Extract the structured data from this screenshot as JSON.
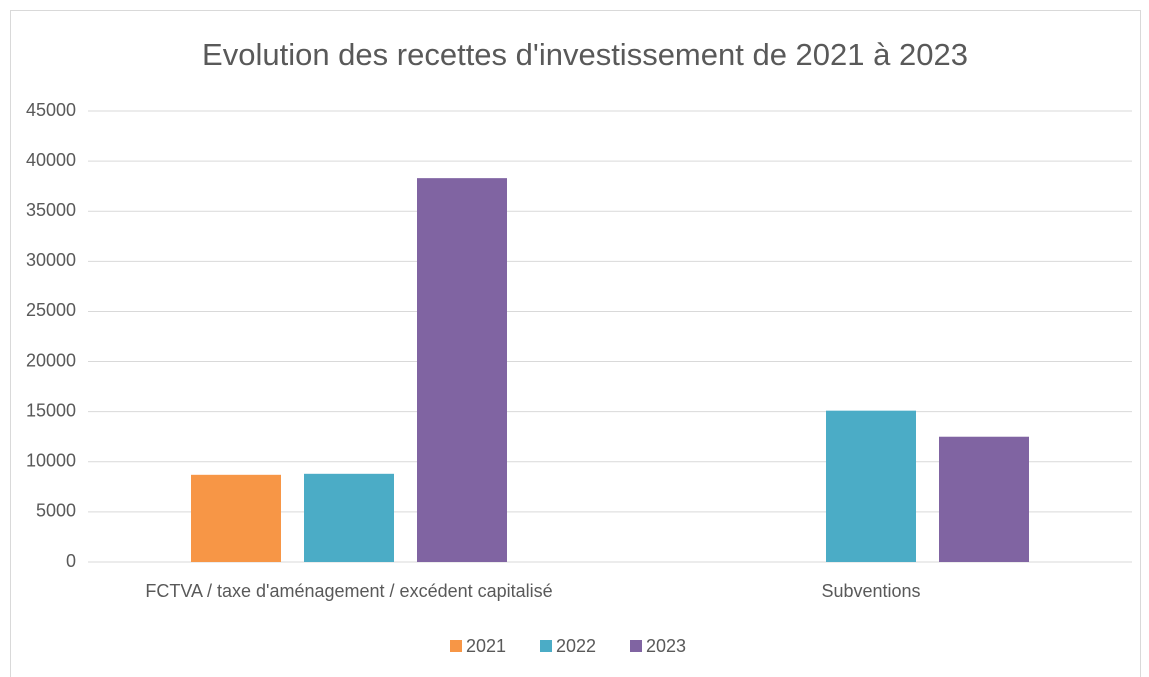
{
  "chart_data": {
    "type": "bar",
    "title": "Evolution des recettes d'investissement de 2021 à 2023",
    "categories": [
      "FCTVA / taxe d'aménagement / excédent capitalisé",
      "Subventions"
    ],
    "series": [
      {
        "name": "2021",
        "color": "#f79646",
        "values": [
          8700,
          null
        ]
      },
      {
        "name": "2022",
        "color": "#4bacc6",
        "values": [
          8800,
          15100
        ]
      },
      {
        "name": "2023",
        "color": "#8064a2",
        "values": [
          38300,
          12500
        ]
      }
    ],
    "ylim": [
      0,
      45000
    ],
    "yticks": [
      0,
      5000,
      10000,
      15000,
      20000,
      25000,
      30000,
      35000,
      40000,
      45000
    ],
    "grid": true,
    "legend": "bottom"
  }
}
